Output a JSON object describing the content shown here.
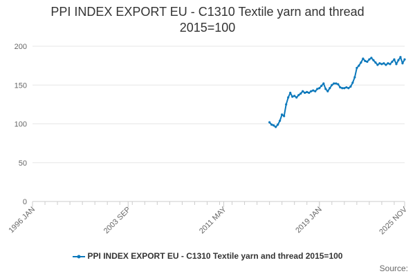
{
  "chart_data": {
    "type": "line",
    "title": "PPI INDEX EXPORT EU - C1310 Textile yarn and thread 2015=100",
    "title_lines": [
      "PPI INDEX EXPORT EU - C1310 Textile yarn and thread",
      "2015=100"
    ],
    "xlabel": "",
    "ylabel": "",
    "ylim": [
      0,
      200
    ],
    "y_ticks": [
      0,
      50,
      100,
      150,
      200
    ],
    "x_range": [
      "1996-01",
      "2025-11"
    ],
    "x_ticks": [
      "1996 JAN",
      "2003 SEP",
      "2011 MAY",
      "2019 JAN",
      "2025 NOV"
    ],
    "grid": true,
    "legend_position": "bottom",
    "series": [
      {
        "name": "PPI INDEX EXPORT EU - C1310 Textile yarn and thread 2015=100",
        "color": "#0b78bb",
        "x": [
          "2015-01",
          "2015-03",
          "2015-05",
          "2015-07",
          "2015-09",
          "2015-11",
          "2016-01",
          "2016-03",
          "2016-05",
          "2016-07",
          "2016-09",
          "2016-11",
          "2017-01",
          "2017-03",
          "2017-05",
          "2017-07",
          "2017-09",
          "2017-11",
          "2018-01",
          "2018-03",
          "2018-05",
          "2018-07",
          "2018-09",
          "2018-11",
          "2019-01",
          "2019-03",
          "2019-05",
          "2019-07",
          "2019-09",
          "2019-11",
          "2020-01",
          "2020-03",
          "2020-05",
          "2020-07",
          "2020-09",
          "2020-11",
          "2021-01",
          "2021-03",
          "2021-05",
          "2021-07",
          "2021-09",
          "2021-11",
          "2022-01",
          "2022-03",
          "2022-05",
          "2022-07",
          "2022-09",
          "2022-11",
          "2023-01",
          "2023-03",
          "2023-05",
          "2023-07",
          "2023-09",
          "2023-11",
          "2024-01",
          "2024-03",
          "2024-05",
          "2024-07",
          "2024-09",
          "2024-11",
          "2025-01",
          "2025-03",
          "2025-05",
          "2025-07",
          "2025-09",
          "2025-11"
        ],
        "values": [
          102,
          99,
          98,
          96,
          99,
          104,
          112,
          110,
          125,
          134,
          140,
          135,
          136,
          134,
          137,
          139,
          142,
          140,
          141,
          140,
          142,
          143,
          142,
          145,
          146,
          149,
          152,
          145,
          142,
          146,
          150,
          152,
          152,
          151,
          147,
          146,
          146,
          147,
          146,
          148,
          153,
          160,
          172,
          175,
          179,
          184,
          181,
          180,
          183,
          185,
          182,
          179,
          176,
          178,
          177,
          178,
          176,
          178,
          177,
          180,
          183,
          177,
          182,
          186,
          178,
          183
        ]
      }
    ]
  },
  "source_label": "Source:"
}
